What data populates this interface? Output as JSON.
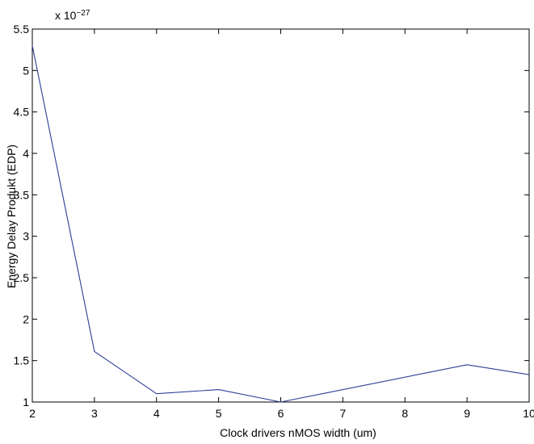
{
  "chart_data": {
    "type": "line",
    "title": "",
    "xlabel": "Clock drivers nMOS width (um)",
    "ylabel": "Energy Delay Produkt (EDP)",
    "y_exponent_label": "x 10",
    "y_exponent_power": "−27",
    "xlim": [
      2,
      10
    ],
    "ylim": [
      1,
      5.5
    ],
    "grid": false,
    "x_ticks": [
      2,
      3,
      4,
      5,
      6,
      7,
      8,
      9,
      10
    ],
    "y_ticks": [
      1,
      1.5,
      2,
      2.5,
      3,
      3.5,
      4,
      4.5,
      5,
      5.5
    ],
    "x_tick_labels": [
      "2",
      "3",
      "4",
      "5",
      "6",
      "7",
      "8",
      "9",
      "10"
    ],
    "y_tick_labels": [
      "1",
      "1.5",
      "2",
      "2.5",
      "3",
      "3.5",
      "4",
      "4.5",
      "5",
      "5.5"
    ],
    "series": [
      {
        "x": [
          2,
          3,
          4,
          5,
          6,
          9,
          10
        ],
        "y": [
          5.3,
          1.61,
          1.1,
          1.15,
          1.0,
          1.45,
          1.33
        ],
        "color": "#2b3f95"
      }
    ]
  }
}
